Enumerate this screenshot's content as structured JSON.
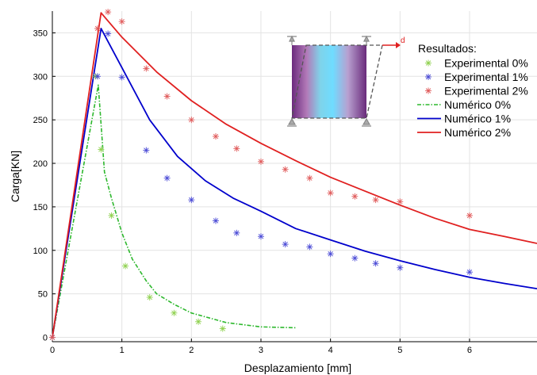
{
  "chart_data": {
    "type": "line",
    "xlabel": "Desplazamiento [mm]",
    "ylabel": "Carga[KN]",
    "xlim": [
      0,
      6.97
    ],
    "ylim": [
      -5,
      375
    ],
    "x_ticks": [
      0,
      1,
      2,
      3,
      4,
      5,
      6
    ],
    "y_ticks": [
      0,
      50,
      100,
      150,
      200,
      250,
      300,
      350
    ],
    "grid": true,
    "legend": {
      "title": "Resultados:",
      "placement": "top-right"
    },
    "inset": {
      "description_label": "d",
      "placement": "top-center-right"
    },
    "series": [
      {
        "name": "Experimental 0%",
        "style": "scatter",
        "marker": "asterisk",
        "color": "#8fd14f",
        "x": [
          0.0,
          0.62,
          0.7,
          0.85,
          1.05,
          1.4,
          1.75,
          2.1,
          2.45
        ],
        "y": [
          0,
          300,
          216,
          140,
          82,
          46,
          28,
          18,
          10
        ]
      },
      {
        "name": "Experimental 1%",
        "style": "scatter",
        "marker": "asterisk",
        "color": "#4a4ad6",
        "x": [
          0.0,
          0.65,
          0.8,
          1.0,
          1.35,
          1.65,
          2.0,
          2.35,
          2.65,
          3.0,
          3.35,
          3.7,
          4.0,
          4.35,
          4.65,
          5.0,
          6.0
        ],
        "y": [
          0,
          300,
          349,
          299,
          215,
          183,
          158,
          134,
          120,
          116,
          107,
          104,
          96,
          91,
          85,
          80,
          75
        ]
      },
      {
        "name": "Experimental 2%",
        "style": "scatter",
        "marker": "asterisk",
        "color": "#e05a5a",
        "x": [
          0.0,
          0.65,
          0.8,
          1.0,
          1.35,
          1.65,
          2.0,
          2.35,
          2.65,
          3.0,
          3.35,
          3.7,
          4.0,
          4.35,
          4.65,
          5.0,
          6.0
        ],
        "y": [
          0,
          355,
          374,
          363,
          309,
          277,
          250,
          231,
          217,
          202,
          193,
          183,
          166,
          162,
          158,
          156,
          140
        ]
      },
      {
        "name": "Numérico 0%",
        "style": "dash-dot",
        "color": "#2db82d",
        "x": [
          0.0,
          0.66,
          0.75,
          0.85,
          1.0,
          1.15,
          1.35,
          1.5,
          1.75,
          2.0,
          2.5,
          3.0,
          3.5
        ],
        "y": [
          0,
          290,
          190,
          160,
          120,
          90,
          65,
          50,
          38,
          28,
          17,
          12,
          11
        ]
      },
      {
        "name": "Numérico 1%",
        "style": "solid",
        "color": "#0000cc",
        "x": [
          0.0,
          0.7,
          1.0,
          1.4,
          1.8,
          2.2,
          2.6,
          3.0,
          3.5,
          4.0,
          4.5,
          5.0,
          5.5,
          6.0,
          6.5,
          6.97
        ],
        "y": [
          0,
          355,
          310,
          250,
          208,
          180,
          160,
          145,
          125,
          112,
          99,
          88,
          78,
          69,
          62,
          56
        ]
      },
      {
        "name": "Numérico 2%",
        "style": "solid",
        "color": "#e02020",
        "x": [
          0.0,
          0.7,
          1.0,
          1.5,
          2.0,
          2.5,
          3.0,
          3.5,
          4.0,
          4.5,
          5.0,
          5.5,
          6.0,
          6.5,
          6.97
        ],
        "y": [
          0,
          373,
          345,
          305,
          272,
          245,
          223,
          203,
          184,
          168,
          152,
          137,
          124,
          116,
          108
        ]
      }
    ]
  }
}
